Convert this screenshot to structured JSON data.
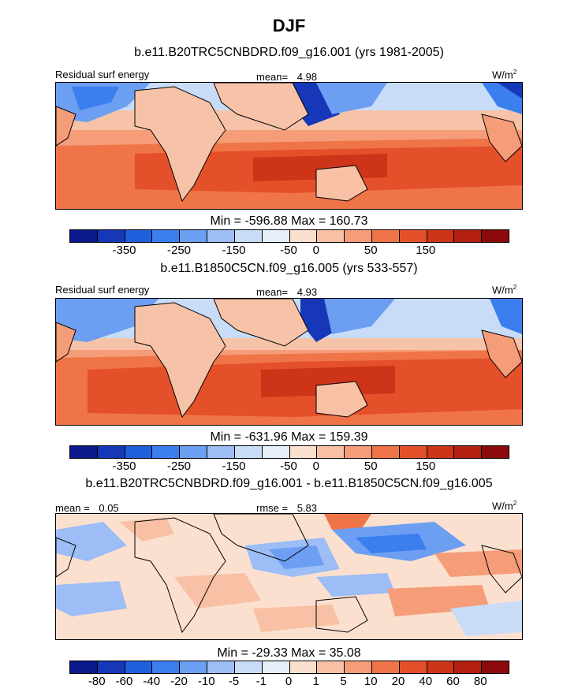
{
  "title": "DJF",
  "units_base": "W/m",
  "units_exp": "2",
  "panel1": {
    "case": "b.e11.B20TRC5CNBDRD.f09_g16.001 (yrs 1981-2005)",
    "variable": "Residual surf energy",
    "mean_label": "mean=",
    "mean_value": "4.98",
    "minmax": "Min = -596.88 Max = 160.73"
  },
  "panel2": {
    "case": "b.e11.B1850C5CN.f09_g16.005 (yrs 533-557)",
    "variable": "Residual surf energy",
    "mean_label": "mean=",
    "mean_value": "4.93",
    "minmax": "Min = -631.96 Max = 159.39"
  },
  "panel3": {
    "case": "b.e11.B20TRC5CNBDRD.f09_g16.001 - b.e11.B1850C5CN.f09_g16.005",
    "mean_label": "mean =",
    "mean_value": "0.05",
    "rmse_label": "rmse =",
    "rmse_value": "5.83",
    "minmax": "Min = -29.33 Max =  35.08"
  },
  "colorbar_abs": {
    "colors": [
      "#0a1a8c",
      "#1537b8",
      "#1f5fdc",
      "#3b7fee",
      "#6c9ef2",
      "#9dbdf6",
      "#c8dcf8",
      "#e6eefa",
      "#fbe0d0",
      "#f8c0a4",
      "#f59c78",
      "#ef7448",
      "#e4502a",
      "#cd3418",
      "#b3200f",
      "#8c0a0a"
    ],
    "ticks": [
      "-350",
      "-250",
      "-150",
      "-50",
      "0",
      "50",
      "150"
    ]
  },
  "colorbar_diff": {
    "colors": [
      "#0a1a8c",
      "#1537b8",
      "#1f5fdc",
      "#3b7fee",
      "#6c9ef2",
      "#9dbdf6",
      "#c8dcf8",
      "#e6eefa",
      "#fbe0d0",
      "#f8c0a4",
      "#f59c78",
      "#ef7448",
      "#e4502a",
      "#cd3418",
      "#b3200f",
      "#8c0a0a"
    ],
    "ticks": [
      "-80",
      "-60",
      "-40",
      "-20",
      "-10",
      "-5",
      "-1",
      "0",
      "1",
      "5",
      "10",
      "20",
      "40",
      "60",
      "80"
    ]
  }
}
